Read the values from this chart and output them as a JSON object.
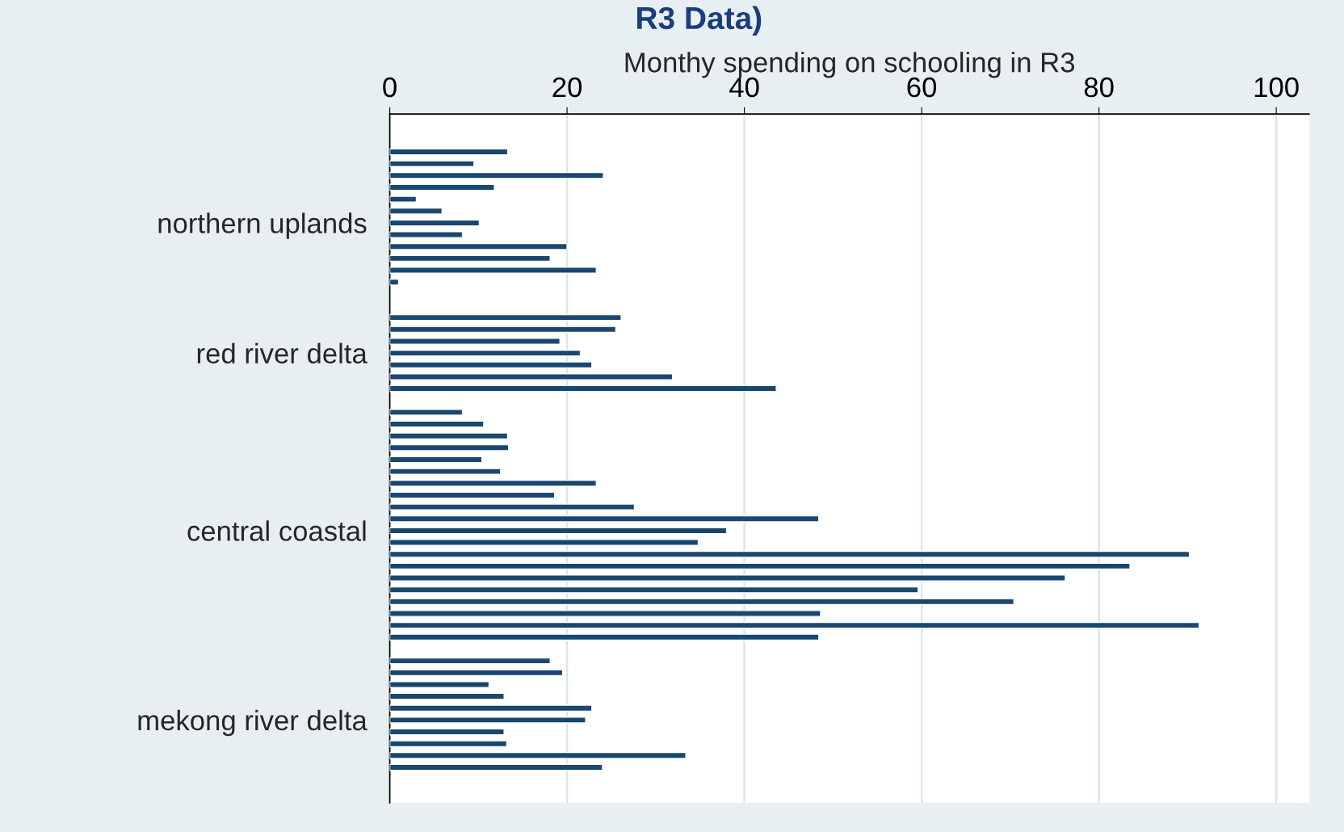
{
  "chart_data": {
    "type": "bar",
    "orientation": "horizontal",
    "title": "R3 Data)",
    "xlabel": "Monthy spending on schooling in R3",
    "categories": [
      null,
      null,
      null,
      null,
      null,
      null,
      "northern uplands",
      null,
      null,
      null,
      null,
      null,
      null,
      null,
      null,
      null,
      null,
      "red river delta",
      null,
      null,
      null,
      null,
      null,
      null,
      null,
      null,
      null,
      null,
      null,
      null,
      null,
      null,
      "central coastal",
      null,
      null,
      null,
      null,
      null,
      null,
      null,
      null,
      null,
      null,
      null,
      null,
      null,
      null,
      null,
      "mekong river delta",
      null,
      null,
      null,
      null
    ],
    "values": [
      13.3,
      9.5,
      24.1,
      11.8,
      3.0,
      5.9,
      10.1,
      8.2,
      20.0,
      18.1,
      23.3,
      1.0,
      null,
      null,
      26.1,
      25.5,
      19.2,
      21.5,
      22.8,
      31.9,
      43.6,
      null,
      8.2,
      10.6,
      13.3,
      13.4,
      10.4,
      12.5,
      23.3,
      18.6,
      27.6,
      48.4,
      38.0,
      34.8,
      90.2,
      83.5,
      76.2,
      59.6,
      70.4,
      48.6,
      91.3,
      48.4,
      null,
      18.1,
      19.5,
      11.2,
      12.9,
      22.8,
      22.1,
      12.9,
      13.2,
      33.4,
      24.0
    ],
    "color": "#1a476f",
    "xlim": [
      0,
      103.7
    ],
    "xticks": [
      0,
      20,
      40,
      60,
      80,
      100
    ],
    "grid": "x"
  }
}
